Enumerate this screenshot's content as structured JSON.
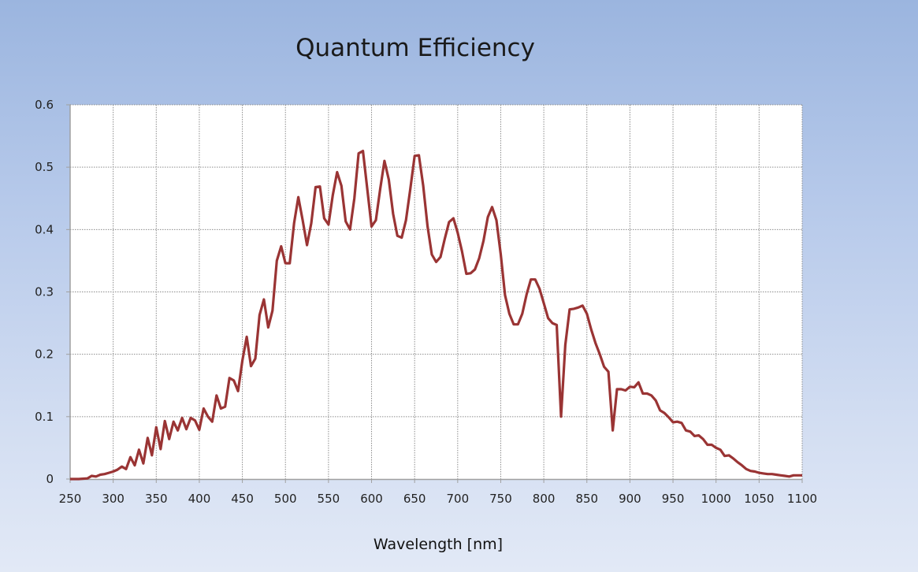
{
  "chart_data": {
    "type": "line",
    "title": "Quantum Efficiency",
    "xlabel": "Wavelength [nm]",
    "ylabel": "",
    "xlim": [
      250,
      1100
    ],
    "ylim": [
      0,
      0.6
    ],
    "xticks": [
      "250",
      "300",
      "350",
      "400",
      "450",
      "500",
      "550",
      "600",
      "650",
      "700",
      "750",
      "800",
      "850",
      "900",
      "950",
      "1000",
      "1050",
      "1100"
    ],
    "yticks": [
      "0",
      "0.1",
      "0.2",
      "0.3",
      "0.4",
      "0.5",
      "0.6"
    ],
    "grid": true,
    "legend": "none",
    "line_color": "#9a3434",
    "series": [
      {
        "x": [
          250,
          260,
          270,
          275,
          280,
          285,
          290,
          295,
          300,
          305,
          310,
          315,
          320,
          325,
          330,
          335,
          340,
          345,
          350,
          355,
          360,
          365,
          370,
          375,
          380,
          385,
          390,
          395,
          400,
          405,
          410,
          415,
          420,
          425,
          430,
          435,
          440,
          445,
          450,
          455,
          460,
          465,
          470,
          475,
          480,
          485,
          490,
          495,
          500,
          505,
          510,
          515,
          520,
          525,
          530,
          535,
          540,
          545,
          550,
          555,
          560,
          565,
          570,
          575,
          580,
          585,
          590,
          595,
          600,
          605,
          610,
          615,
          620,
          625,
          630,
          635,
          640,
          645,
          650,
          655,
          660,
          665,
          670,
          675,
          680,
          685,
          690,
          695,
          700,
          705,
          710,
          715,
          720,
          725,
          730,
          735,
          740,
          745,
          750,
          755,
          760,
          765,
          770,
          775,
          780,
          785,
          790,
          795,
          800,
          805,
          810,
          815,
          820,
          825,
          830,
          835,
          840,
          845,
          850,
          855,
          860,
          865,
          870,
          875,
          880,
          885,
          890,
          895,
          900,
          905,
          910,
          915,
          920,
          925,
          930,
          935,
          940,
          945,
          950,
          955,
          960,
          965,
          970,
          975,
          980,
          985,
          990,
          995,
          1000,
          1005,
          1010,
          1015,
          1020,
          1025,
          1030,
          1035,
          1040,
          1045,
          1050,
          1055,
          1060,
          1065,
          1070,
          1075,
          1080,
          1085,
          1090,
          1095,
          1100
        ],
        "y": [
          0,
          0,
          0.001,
          0.005,
          0.004,
          0.007,
          0.008,
          0.01,
          0.012,
          0.015,
          0.02,
          0.016,
          0.035,
          0.022,
          0.047,
          0.025,
          0.066,
          0.038,
          0.083,
          0.048,
          0.093,
          0.064,
          0.092,
          0.078,
          0.098,
          0.08,
          0.098,
          0.094,
          0.079,
          0.113,
          0.1,
          0.092,
          0.134,
          0.113,
          0.116,
          0.162,
          0.158,
          0.141,
          0.19,
          0.228,
          0.181,
          0.193,
          0.263,
          0.288,
          0.243,
          0.27,
          0.35,
          0.373,
          0.346,
          0.346,
          0.41,
          0.452,
          0.415,
          0.375,
          0.41,
          0.468,
          0.469,
          0.418,
          0.408,
          0.455,
          0.492,
          0.47,
          0.413,
          0.4,
          0.45,
          0.522,
          0.526,
          0.465,
          0.405,
          0.415,
          0.465,
          0.51,
          0.48,
          0.425,
          0.39,
          0.387,
          0.415,
          0.465,
          0.518,
          0.519,
          0.47,
          0.405,
          0.36,
          0.348,
          0.356,
          0.385,
          0.412,
          0.418,
          0.395,
          0.365,
          0.329,
          0.33,
          0.336,
          0.354,
          0.382,
          0.42,
          0.436,
          0.415,
          0.36,
          0.295,
          0.265,
          0.248,
          0.248,
          0.265,
          0.296,
          0.32,
          0.32,
          0.305,
          0.282,
          0.258,
          0.25,
          0.247,
          0.1,
          0.215,
          0.272,
          0.273,
          0.275,
          0.278,
          0.265,
          0.24,
          0.218,
          0.2,
          0.18,
          0.172,
          0.078,
          0.144,
          0.144,
          0.142,
          0.148,
          0.147,
          0.155,
          0.137,
          0.137,
          0.134,
          0.126,
          0.11,
          0.106,
          0.099,
          0.091,
          0.092,
          0.09,
          0.078,
          0.076,
          0.069,
          0.07,
          0.064,
          0.055,
          0.055,
          0.05,
          0.047,
          0.037,
          0.038,
          0.033,
          0.027,
          0.022,
          0.016,
          0.013,
          0.012,
          0.01,
          0.009,
          0.008,
          0.008,
          0.007,
          0.006,
          0.005,
          0.004,
          0.006,
          0.006,
          0.006
        ]
      }
    ]
  }
}
